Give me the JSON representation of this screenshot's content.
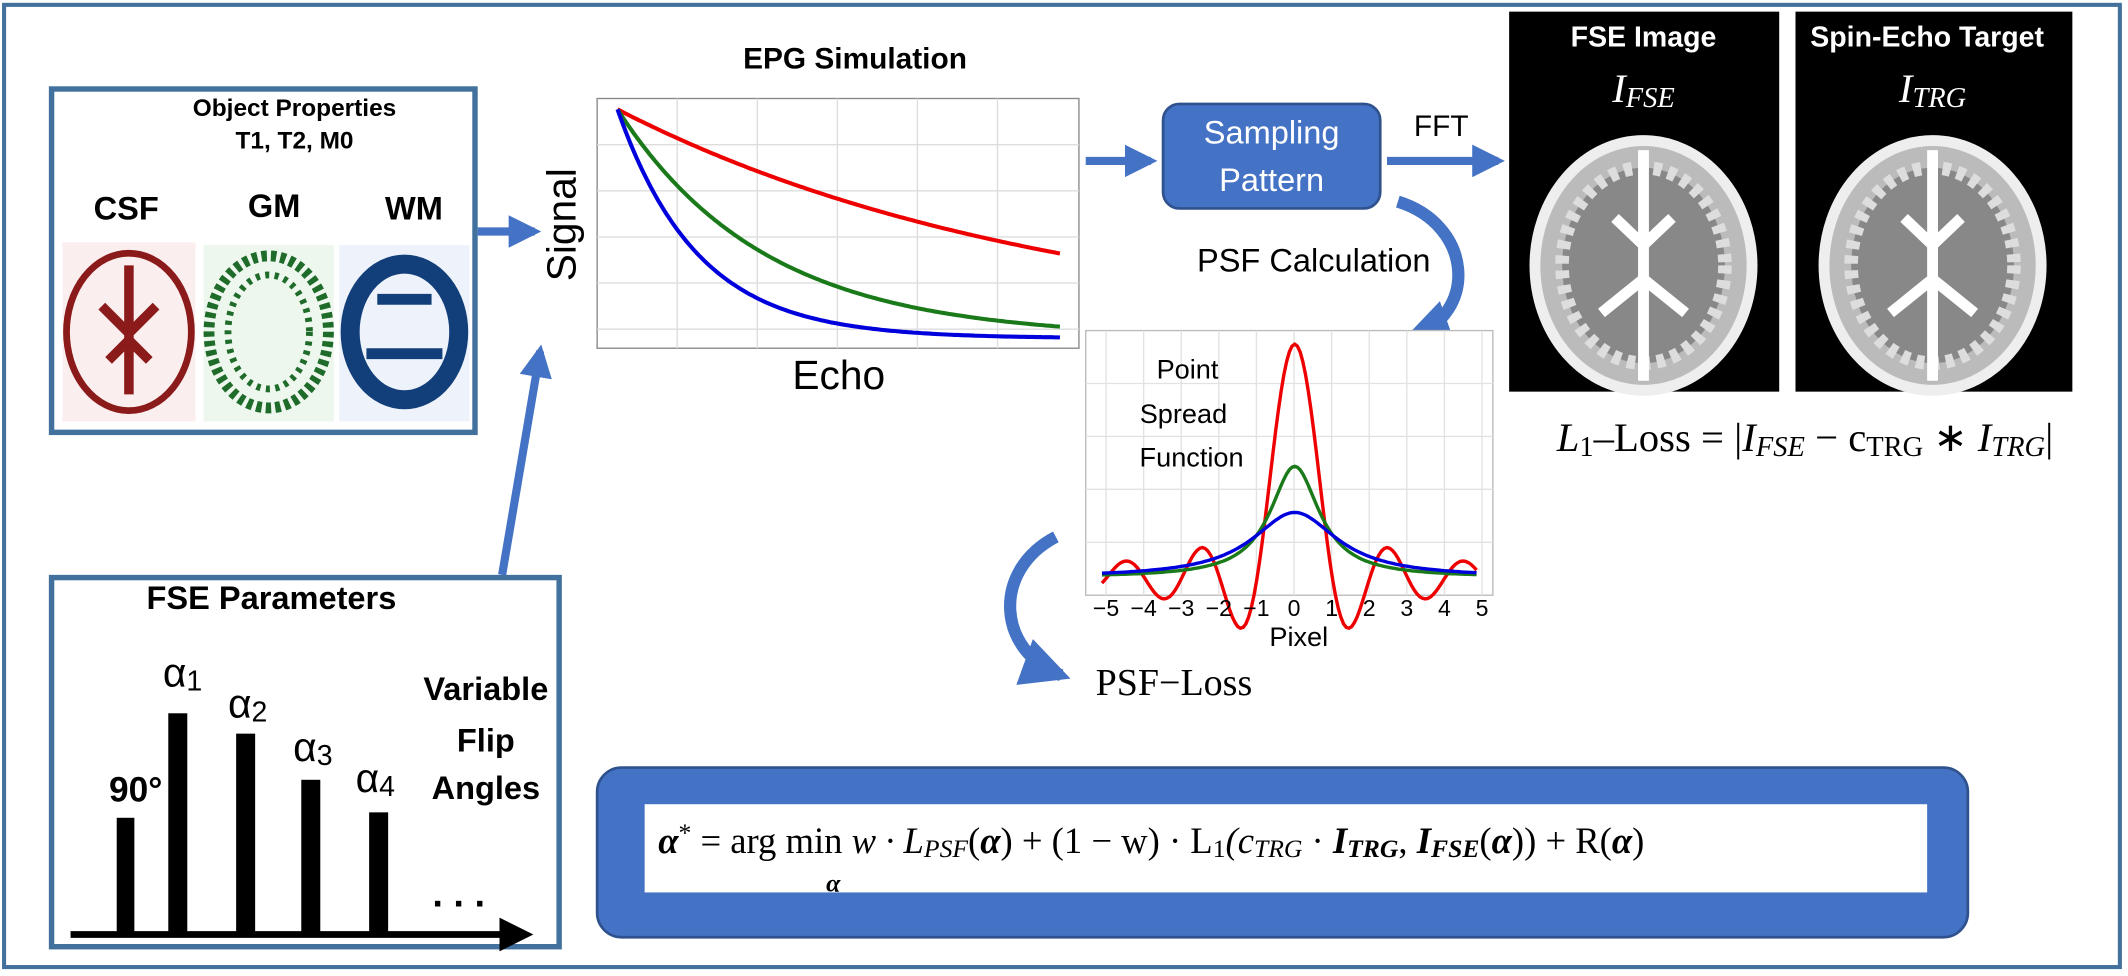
{
  "object_properties": {
    "title": "Object Properties",
    "subtitle": "T1, T2, M0",
    "tissues": [
      "CSF",
      "GM",
      "WM"
    ]
  },
  "epg": {
    "title": "EPG Simulation",
    "y_label": "Signal",
    "x_label": "Echo"
  },
  "sampling": {
    "lines": [
      "Sampling",
      "Pattern"
    ],
    "fft": "FFT",
    "psf_calculation": "PSF Calculation"
  },
  "psf": {
    "label_lines": [
      "Point",
      "Spread",
      "Function"
    ],
    "ticks": [
      "−5",
      "−4",
      "−3",
      "−2",
      "−1",
      "0",
      "1",
      "2",
      "3",
      "4",
      "5"
    ],
    "x_label": "Pixel",
    "loss": "PSF−Loss"
  },
  "images": {
    "fse_title": "FSE Image",
    "fse_symbol": [
      "I",
      "FSE"
    ],
    "target_title": "Spin-Echo Target",
    "target_symbol": [
      "I",
      "TRG"
    ]
  },
  "l1_loss": [
    "L",
    "1",
    "–Loss = |",
    "I",
    "FSE",
    "  − c",
    "TRG",
    " ∗ ",
    "I",
    "TRG",
    "|"
  ],
  "fse_parameters": {
    "title": "FSE Parameters",
    "angles": [
      "90°",
      "α",
      "1",
      "α",
      "2",
      "α",
      "3",
      "α",
      "4"
    ],
    "variable_lines": [
      "Variable",
      "Flip",
      "Angles"
    ],
    "ellipsis": ". . ."
  },
  "formula": {
    "segments": [
      "α",
      "*",
      " =  arg min  ",
      "w · L",
      "PSF",
      "(",
      "α",
      ") + (1 − w) · L",
      "1",
      "(c",
      "TRG",
      " · ",
      "I",
      "TRG",
      ", ",
      "I",
      "FSE",
      "(",
      "α",
      ")) + R(",
      "α",
      ")"
    ],
    "under": "α"
  }
}
